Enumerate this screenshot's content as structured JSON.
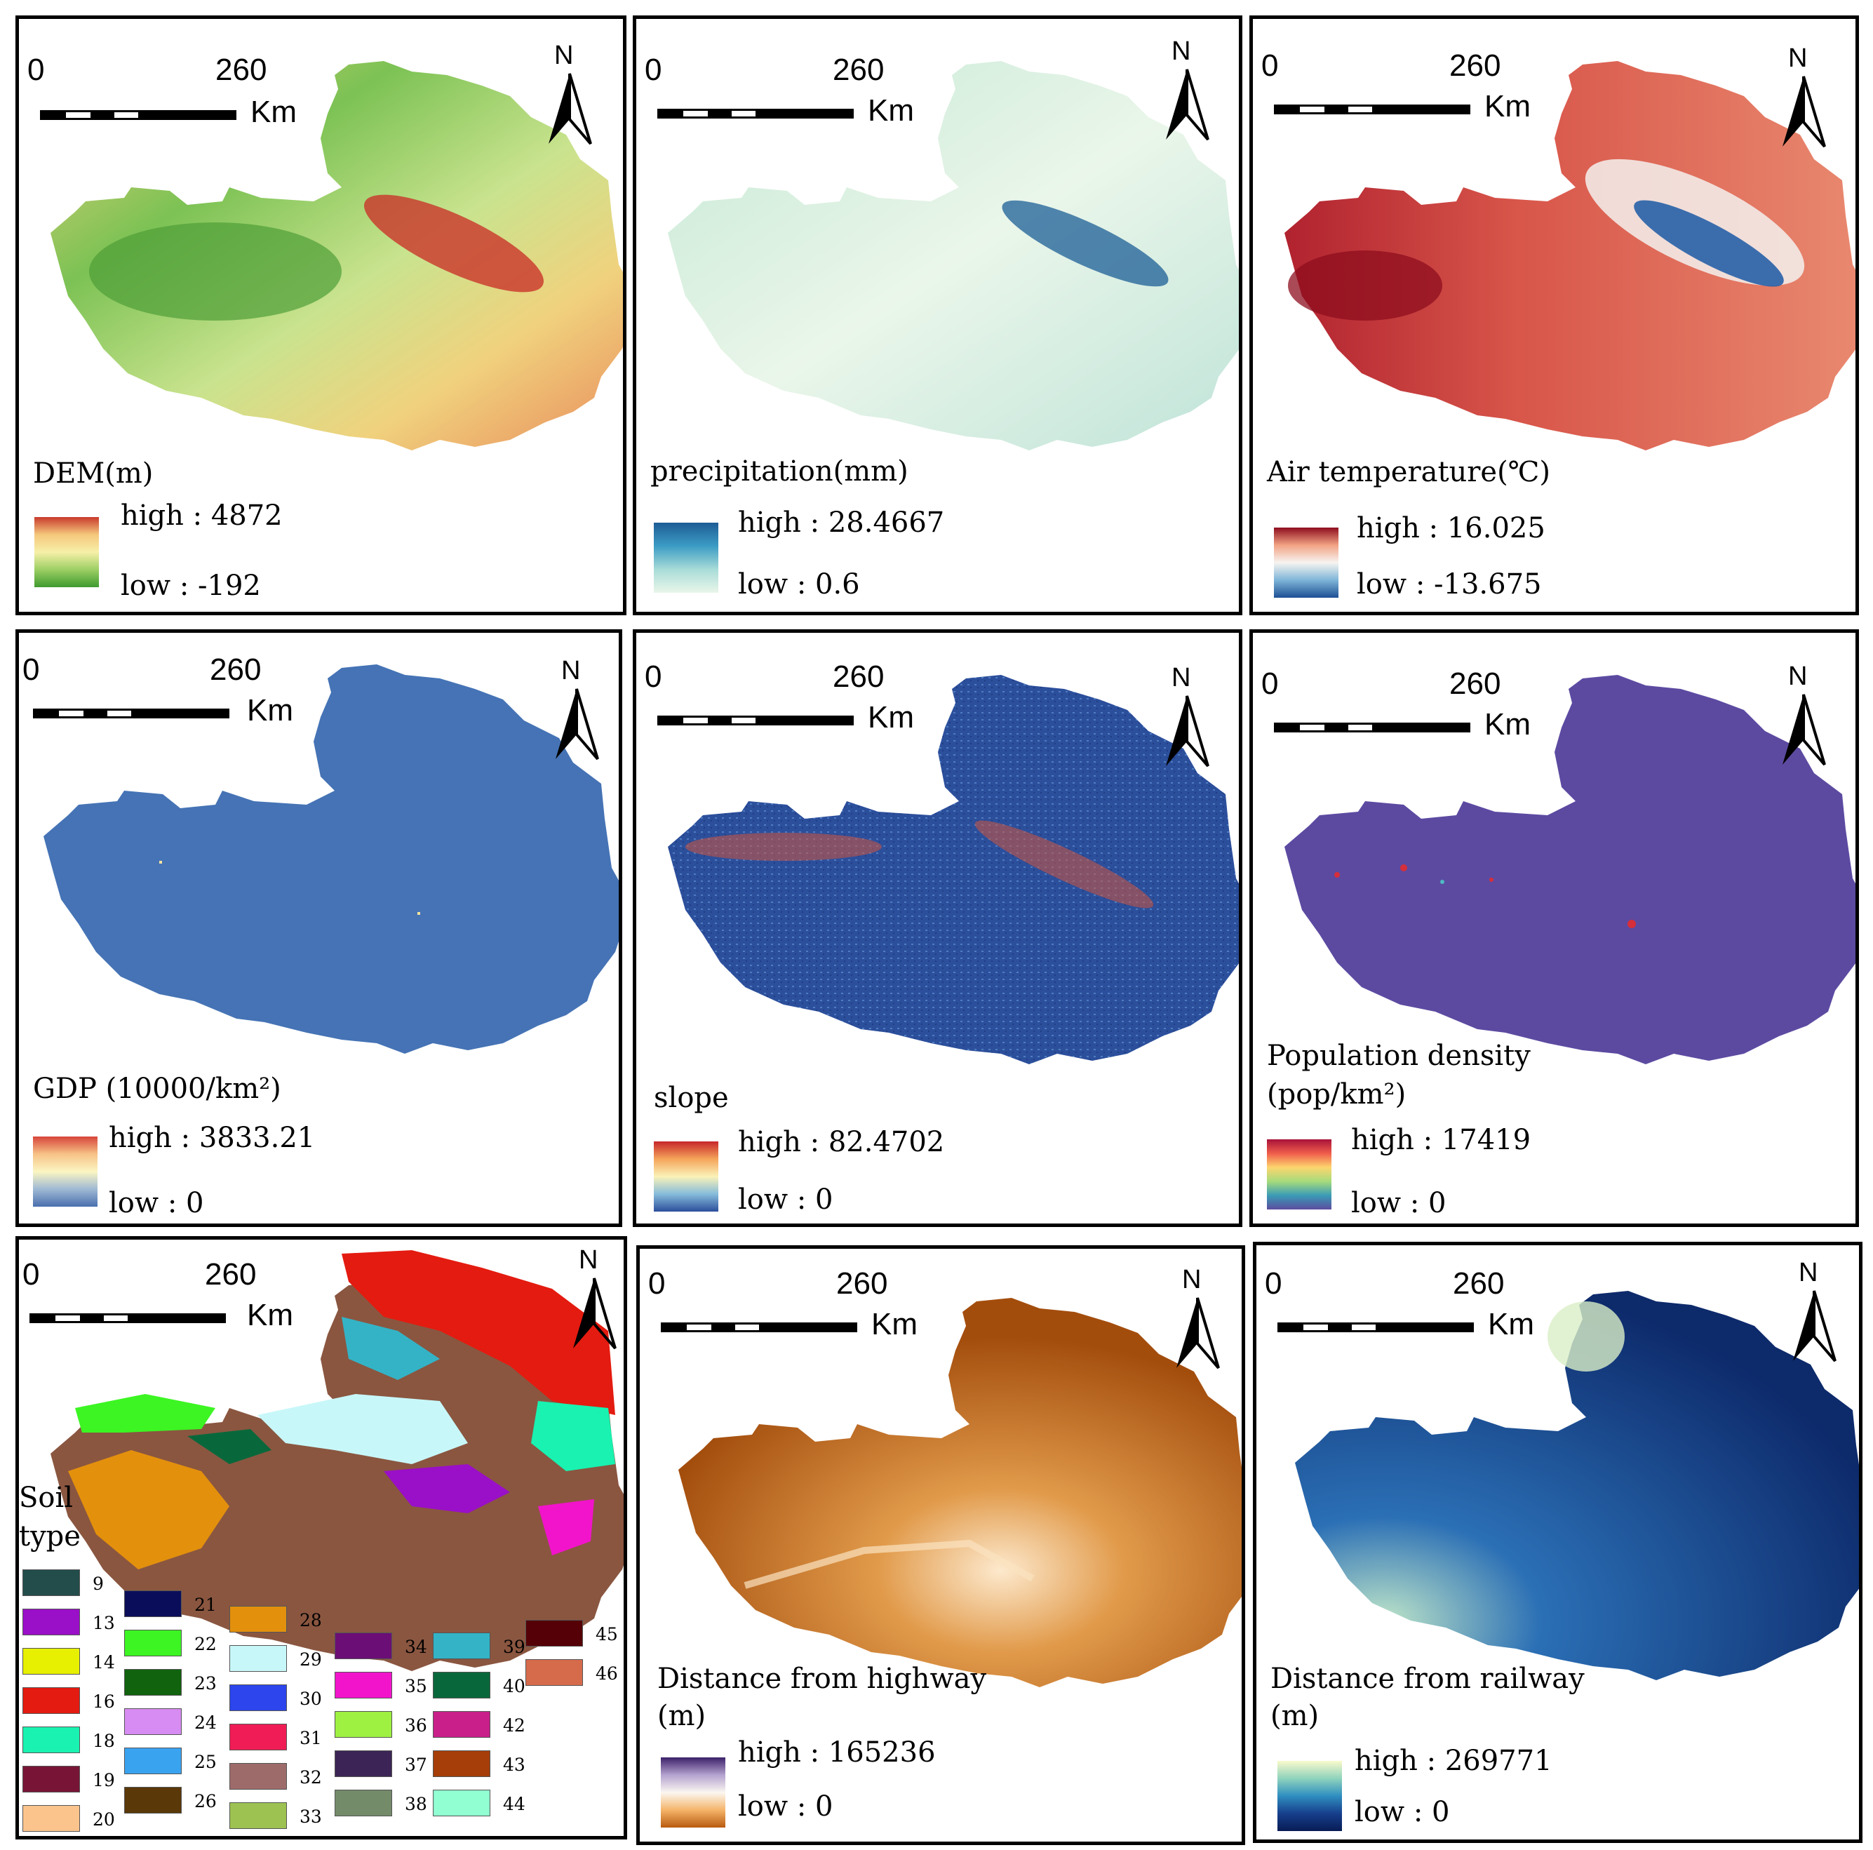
{
  "scale_bar": {
    "zero": "0",
    "distance": "260",
    "unit": "Km"
  },
  "north_label": "N",
  "panels": [
    {
      "id": "dem",
      "title": "DEM(m)",
      "high": "high : 4872",
      "low": "low : -192",
      "ramp": [
        "#c83a2c",
        "#f5c77c",
        "#f7f0a8",
        "#9ccf64",
        "#3e9a2e"
      ],
      "fill": [
        "#c9352b",
        "#f0d27e",
        "#7cc254"
      ]
    },
    {
      "id": "precip",
      "title": "precipitation(mm)",
      "high": "high : 28.4667",
      "low": "low : 0.6",
      "ramp": [
        "#1d5c95",
        "#3c9cc4",
        "#a8dcd8",
        "#eaf6ea"
      ],
      "fill": [
        "#e8f5e6",
        "#c4e8d4",
        "#1b5e96"
      ]
    },
    {
      "id": "temp",
      "title": "Air temperature(℃)",
      "high": "high : 16.025",
      "low": "low : -13.675",
      "ramp": [
        "#8e0d1e",
        "#f2a283",
        "#f7f4f1",
        "#7eb5d8",
        "#1c4f93"
      ],
      "fill": [
        "#d8564a",
        "#b1222f",
        "#2761a7"
      ]
    },
    {
      "id": "gdp",
      "title": "GDP (10000/km²)",
      "high": "high : 3833.21",
      "low": "low : 0",
      "ramp": [
        "#d7443a",
        "#f7c286",
        "#fbf6c2",
        "#9fb9d4",
        "#4a6fae"
      ],
      "fill": [
        "#4573b5"
      ]
    },
    {
      "id": "slope",
      "title": "slope",
      "high": "high : 82.4702",
      "low": "low : 0",
      "ramp": [
        "#c7262a",
        "#f5a45a",
        "#fbf2b8",
        "#86bcdb",
        "#2b4f9b"
      ],
      "fill": [
        "#2c4f9c",
        "#3d6ab0",
        "#d0553e"
      ]
    },
    {
      "id": "pop",
      "title": "Population density",
      "title2": "(pop/km²)",
      "high": "high : 17419",
      "low": "low : 0",
      "ramp": [
        "#a8123a",
        "#f05d4b",
        "#fdd56e",
        "#a6db7b",
        "#3a9bb6",
        "#5c4da0"
      ],
      "fill": [
        "#5c4aa1"
      ]
    },
    {
      "id": "highway",
      "title": "Distance from highway",
      "title2": "(m)",
      "high": "high : 165236",
      "low": "low : 0",
      "ramp": [
        "#3b2069",
        "#b4a2cf",
        "#fbf7f1",
        "#f5b46a",
        "#b85a0e"
      ],
      "fill": [
        "#a34d0d",
        "#e19a4a",
        "#fde9cd"
      ]
    },
    {
      "id": "railway",
      "title": "Distance from railway",
      "title2": "(m)",
      "high": "high : 269771",
      "low": "low : 0",
      "ramp": [
        "#fafacb",
        "#8fd3bd",
        "#2f8ec0",
        "#173f8c",
        "#081c55"
      ],
      "fill": [
        "#0d2a6b",
        "#2b6fb5",
        "#bfe6c9"
      ]
    }
  ],
  "soil": {
    "title_line1": "Soil",
    "title_line2": "type",
    "classes": [
      {
        "code": "9",
        "color": "#224d4b"
      },
      {
        "code": "13",
        "color": "#9a0fc8"
      },
      {
        "code": "14",
        "color": "#e6f000"
      },
      {
        "code": "16",
        "color": "#e41b10"
      },
      {
        "code": "18",
        "color": "#19f2b0"
      },
      {
        "code": "19",
        "color": "#781537"
      },
      {
        "code": "20",
        "color": "#fbc48d"
      },
      {
        "code": "21",
        "color": "#0a0e5a"
      },
      {
        "code": "22",
        "color": "#3cf523"
      },
      {
        "code": "23",
        "color": "#11630e"
      },
      {
        "code": "24",
        "color": "#d78cf3"
      },
      {
        "code": "25",
        "color": "#3aa3f0"
      },
      {
        "code": "26",
        "color": "#5a3808"
      },
      {
        "code": "28",
        "color": "#e3900d"
      },
      {
        "code": "29",
        "color": "#c8f7f9"
      },
      {
        "code": "30",
        "color": "#2c45ec"
      },
      {
        "code": "31",
        "color": "#f01c55"
      },
      {
        "code": "32",
        "color": "#9e6b6b"
      },
      {
        "code": "33",
        "color": "#9dc252"
      },
      {
        "code": "34",
        "color": "#6b0f76"
      },
      {
        "code": "35",
        "color": "#f214cb"
      },
      {
        "code": "36",
        "color": "#9ef041"
      },
      {
        "code": "37",
        "color": "#3c2556"
      },
      {
        "code": "38",
        "color": "#748b6a"
      },
      {
        "code": "39",
        "color": "#34b3c6"
      },
      {
        "code": "40",
        "color": "#09683b"
      },
      {
        "code": "42",
        "color": "#c81f8a"
      },
      {
        "code": "43",
        "color": "#a63e09"
      },
      {
        "code": "44",
        "color": "#91ffd1"
      },
      {
        "code": "45",
        "color": "#550006"
      },
      {
        "code": "46",
        "color": "#d66b4c"
      }
    ]
  }
}
